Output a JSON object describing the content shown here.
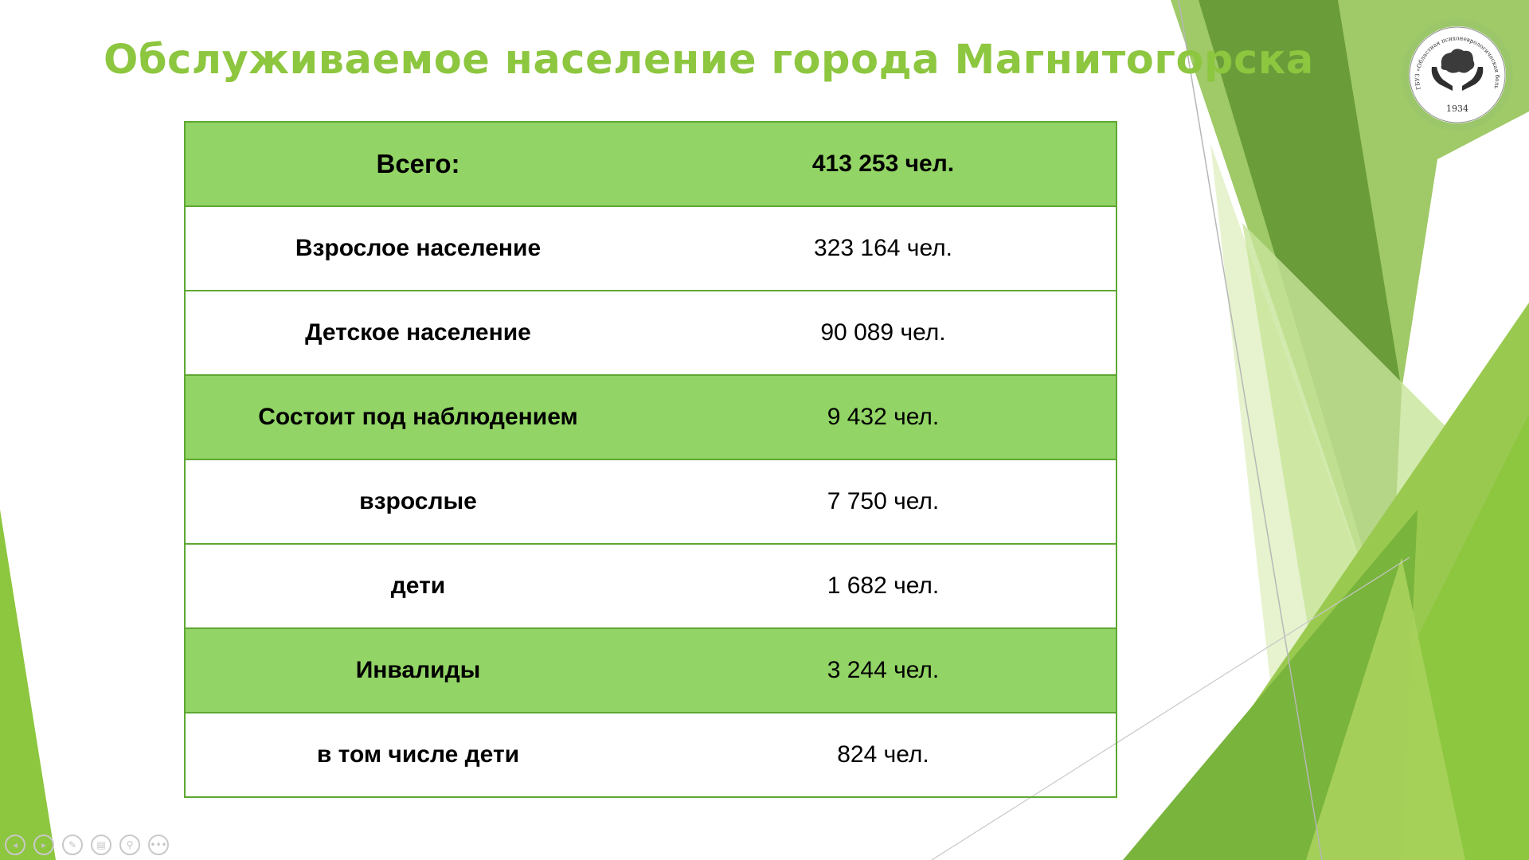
{
  "slide": {
    "title": "Обслуживаемое население города Магнитогорска"
  },
  "logo": {
    "arc_text": "ГБУЗ «Областная психоневрологическая больница №5» г. Магнитогорск",
    "year": "1934",
    "icon": "brain-in-hands-icon"
  },
  "colors": {
    "title": "#8dc63f",
    "highlight_row": "#92d465",
    "border": "#5ea832"
  },
  "table": {
    "rows": [
      {
        "label": "Всего:",
        "value": "413 253 чел.",
        "highlight": true
      },
      {
        "label": "Взрослое население",
        "value": "323 164 чел.",
        "highlight": false
      },
      {
        "label": "Детское население",
        "value": "90 089 чел.",
        "highlight": false
      },
      {
        "label": "Состоит под наблюдением",
        "value": "9 432 чел.",
        "highlight": true
      },
      {
        "label": "взрослые",
        "value": "7 750 чел.",
        "highlight": false
      },
      {
        "label": "дети",
        "value": "1 682 чел.",
        "highlight": false
      },
      {
        "label": "Инвалиды",
        "value": "3 244 чел.",
        "highlight": true
      },
      {
        "label": "в том числе дети",
        "value": "824 чел.",
        "highlight": false
      }
    ]
  },
  "nav": {
    "prev": "◂",
    "next": "▸",
    "pen": "✎",
    "slides": "▤",
    "zoom": "⚲",
    "more": "•••"
  }
}
